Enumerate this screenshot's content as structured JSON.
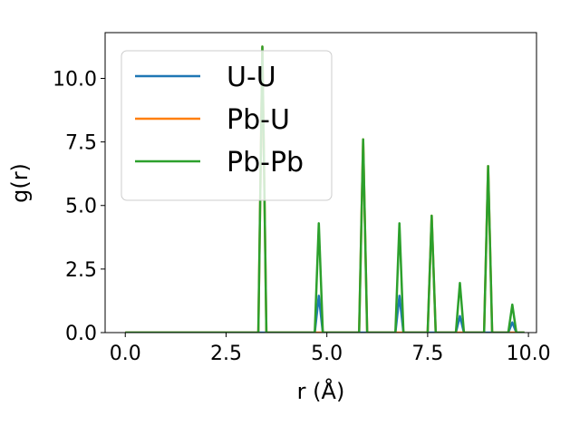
{
  "chart_data": {
    "type": "line",
    "xlabel": "r (Å)",
    "ylabel": "g(r)",
    "xlim": [
      -0.5,
      10.2
    ],
    "ylim": [
      0,
      11.8
    ],
    "xticks": [
      0.0,
      2.5,
      5.0,
      7.5,
      10.0
    ],
    "xtick_labels": [
      "0.0",
      "2.5",
      "5.0",
      "7.5",
      "10.0"
    ],
    "yticks": [
      0.0,
      2.5,
      5.0,
      7.5,
      10.0
    ],
    "ytick_labels": [
      "0.0",
      "2.5",
      "5.0",
      "7.5",
      "10.0"
    ],
    "grid": false,
    "legend_position": "top-left",
    "series": [
      {
        "name": "U-U",
        "color": "#1f77b4",
        "x": [
          0.0,
          4.7,
          4.8,
          4.9,
          6.7,
          6.8,
          6.9,
          8.2,
          8.3,
          8.4,
          9.5,
          9.6,
          9.7,
          9.9
        ],
        "y": [
          0.0,
          0.0,
          1.45,
          0.0,
          0.0,
          1.45,
          0.0,
          0.0,
          0.65,
          0.0,
          0.0,
          0.4,
          0.0,
          0.0
        ]
      },
      {
        "name": "Pb-U",
        "color": "#ff7f0e",
        "x": [
          0.0,
          3.3,
          3.4,
          3.5,
          5.8,
          5.9,
          6.0,
          7.5,
          7.6,
          7.7,
          8.9,
          9.0,
          9.1,
          9.9
        ],
        "y": [
          0.0,
          0.0,
          11.25,
          0.0,
          0.0,
          7.6,
          0.0,
          0.0,
          4.6,
          0.0,
          0.0,
          6.55,
          0.0,
          0.0
        ]
      },
      {
        "name": "Pb-Pb",
        "color": "#2ca02c",
        "x": [
          0.0,
          3.3,
          3.4,
          3.5,
          4.7,
          4.8,
          4.9,
          5.8,
          5.9,
          6.0,
          6.7,
          6.8,
          6.9,
          7.5,
          7.6,
          7.7,
          8.2,
          8.3,
          8.4,
          8.9,
          9.0,
          9.1,
          9.5,
          9.6,
          9.7,
          9.9
        ],
        "y": [
          0.0,
          0.0,
          11.25,
          0.0,
          0.0,
          4.3,
          0.0,
          0.0,
          7.6,
          0.0,
          0.0,
          4.3,
          0.0,
          0.0,
          4.6,
          0.0,
          0.0,
          1.95,
          0.0,
          0.0,
          6.55,
          0.0,
          0.0,
          1.1,
          0.0,
          0.0
        ]
      }
    ]
  }
}
